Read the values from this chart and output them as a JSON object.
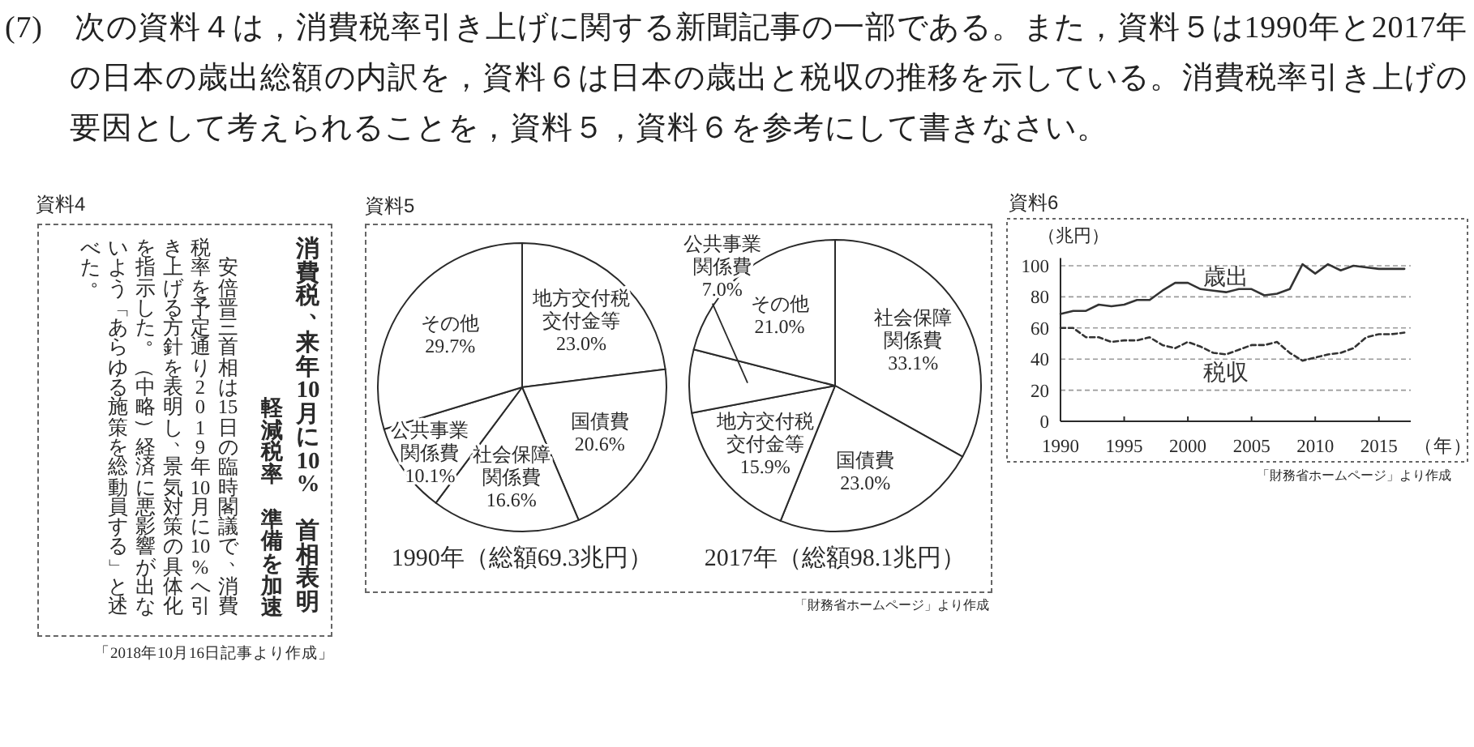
{
  "chart_data": [
    {
      "type": "other",
      "title": "(7)　次の資料４は，消費税率引き上げに関する新聞記事の一部である。また，資料５は1990年と2017年の日本の歳出総額の内訳を，資料６は日本の歳出と税収の推移を示している。消費税率引き上げの要因として考えられることを，資料５，資料６を参考にして書きなさい。"
    },
    {
      "type": "other",
      "title": "資料4",
      "subtitle": "消費税、来年10月に10%　首相表明",
      "annotations": [
        "軽減税率",
        "準備を加速",
        "安倍晋三首相は15日の臨時閣議で、消費税率を予定通り2019年10月に10%へ引き上げる方針を表明し、景気対策の具体化を指示した。（中略）経済に悪影響が出ないよう「あらゆる施策を総動員する」と述べた。",
        "「2018年10月16日記事より作成」"
      ]
    },
    {
      "type": "pie",
      "title": "資料5",
      "xlabel": "1990年（総額69.3兆円）",
      "categories": [
        "地方交付税交付金等",
        "国債費",
        "社会保障関係費",
        "公共事業関係費",
        "その他"
      ],
      "values": [
        23.0,
        20.6,
        16.6,
        10.1,
        29.7
      ],
      "value_labels": [
        "23.0%",
        "20.6%",
        "16.6%",
        "10.1%",
        "29.7%"
      ],
      "colors": [
        "#ffffff",
        "#ffffff",
        "#ffffff",
        "#ffffff",
        "#ffffff"
      ]
    },
    {
      "type": "pie",
      "xlabel": "2017年（総額98.1兆円）",
      "categories": [
        "社会保障関係費",
        "国債費",
        "地方交付税交付金等",
        "公共事業関係費",
        "その他"
      ],
      "values": [
        33.1,
        23.0,
        15.9,
        7.0,
        21.0
      ],
      "value_labels": [
        "33.1%",
        "23.0%",
        "15.9%",
        "7.0%",
        "21.0%"
      ],
      "colors": [
        "#ffffff",
        "#ffffff",
        "#ffffff",
        "#ffffff",
        "#ffffff"
      ],
      "annotations": [
        "「財務省ホームページ」より作成"
      ]
    },
    {
      "type": "line",
      "title": "資料6",
      "ylabel": "（兆円）",
      "xlabel": "（年）",
      "x": [
        1990,
        1991,
        1992,
        1993,
        1994,
        1995,
        1996,
        1997,
        1998,
        1999,
        2000,
        2001,
        2002,
        2003,
        2004,
        2005,
        2006,
        2007,
        2008,
        2009,
        2010,
        2011,
        2012,
        2013,
        2014,
        2015,
        2016,
        2017
      ],
      "series": [
        {
          "name": "歳出",
          "color": "#333333",
          "line_style": "solid",
          "values": [
            69,
            71,
            71,
            75,
            74,
            75,
            78,
            78,
            84,
            89,
            89,
            85,
            84,
            83,
            85,
            85,
            81,
            82,
            85,
            101,
            95,
            101,
            97,
            100,
            99,
            98,
            98,
            98
          ]
        },
        {
          "name": "税収",
          "color": "#333333",
          "line_style": "dashed",
          "values": [
            60,
            60,
            54,
            54,
            51,
            52,
            52,
            54,
            49,
            47,
            51,
            48,
            44,
            43,
            46,
            49,
            49,
            51,
            44,
            39,
            41,
            43,
            44,
            47,
            54,
            56,
            56,
            57
          ]
        }
      ],
      "xlim": [
        1990,
        2017.5
      ],
      "ylim": [
        0,
        105
      ],
      "xticks": [
        1990,
        1995,
        2000,
        2005,
        2010,
        2015
      ],
      "yticks": [
        0,
        20,
        40,
        60,
        80,
        100
      ],
      "grid": "y",
      "annotations": [
        "「財務省ホームページ」より作成"
      ]
    }
  ]
}
